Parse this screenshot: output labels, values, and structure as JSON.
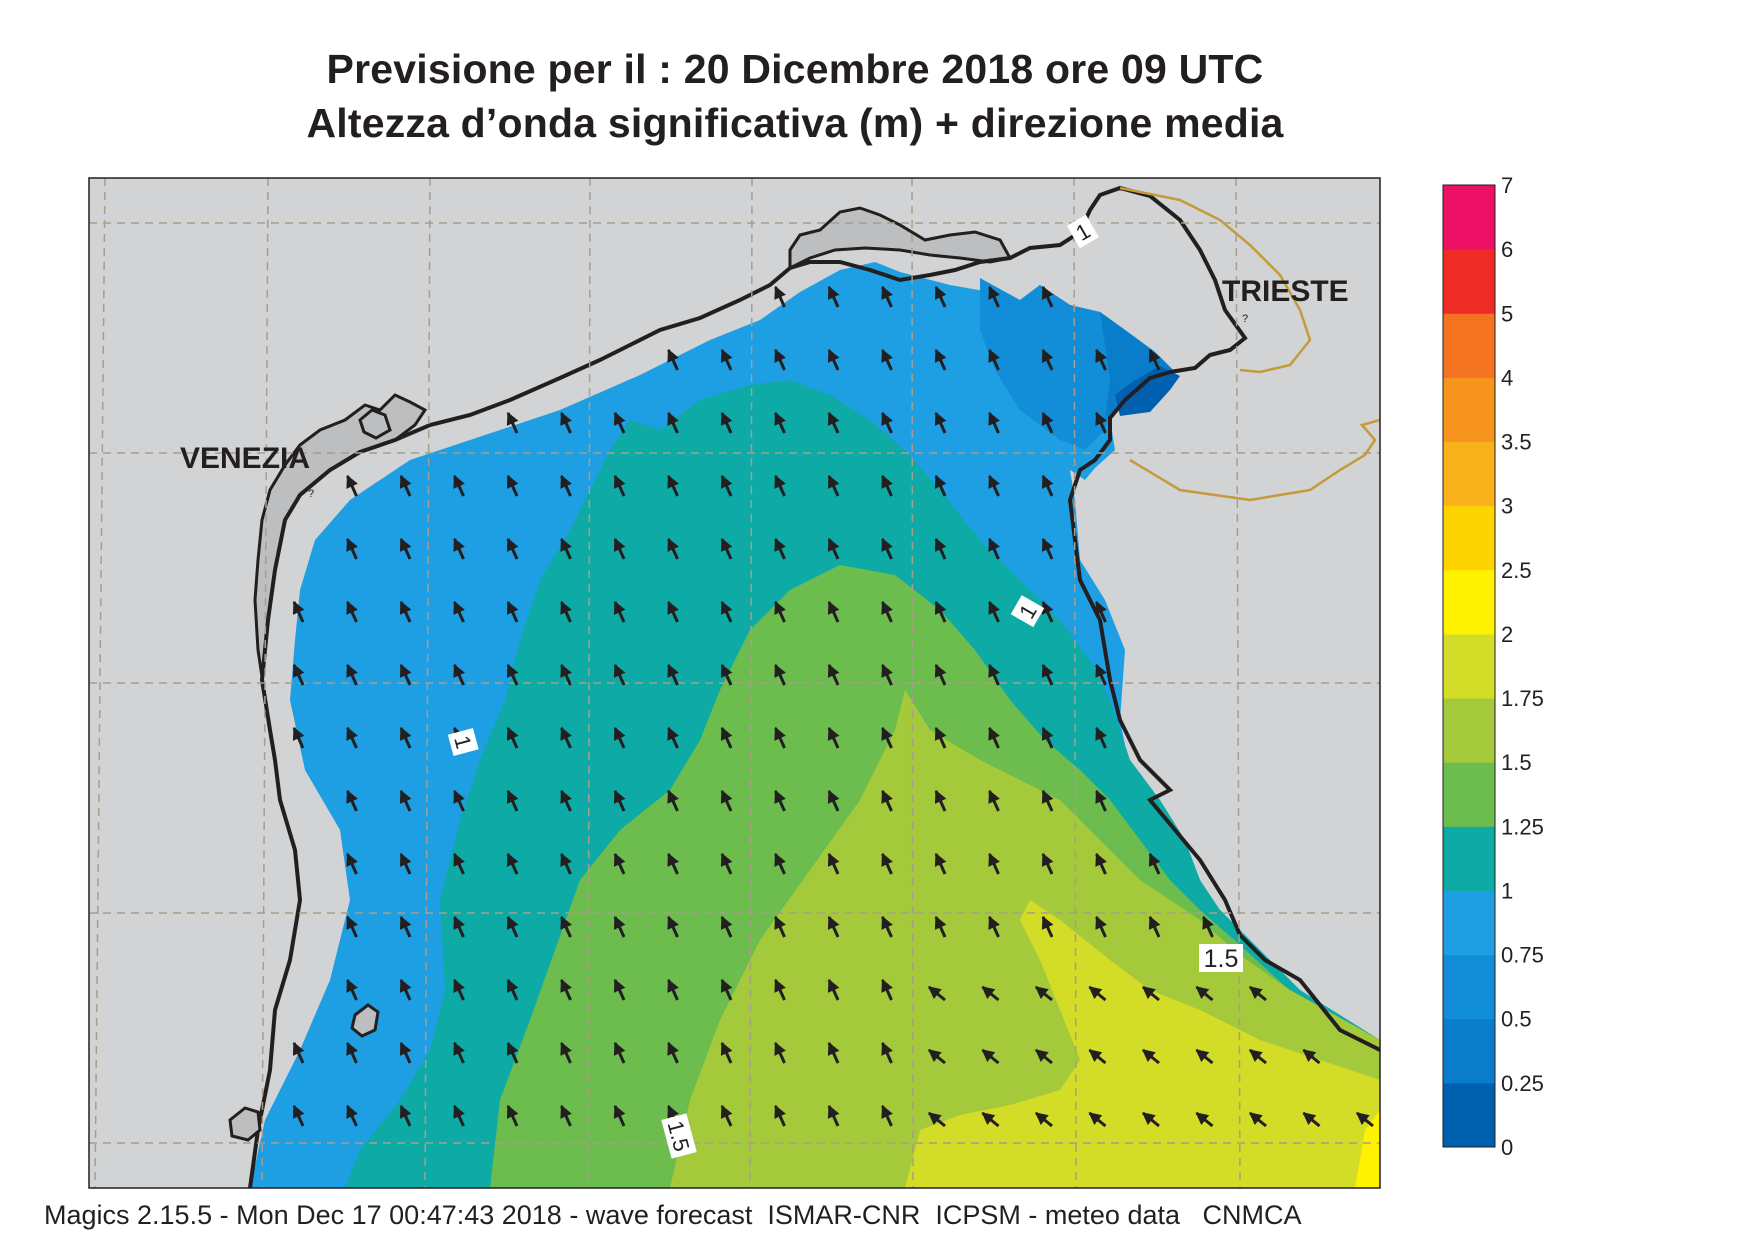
{
  "title": {
    "line1": "Previsione per il  :  20 Dicembre  2018   ore 09 UTC",
    "line2": "Altezza d’onda significativa (m) + direzione media"
  },
  "places": {
    "venezia": "VENEZIA",
    "trieste": "TRIESTE",
    "small_marker": "?"
  },
  "contour_labels": [
    "1",
    "1",
    "1",
    "1.5",
    "1.5"
  ],
  "legend": {
    "levels": [
      "0",
      "0.25",
      "0.5",
      "0.75",
      "1",
      "1.25",
      "1.5",
      "1.75",
      "2",
      "2.5",
      "3",
      "3.5",
      "4",
      "5",
      "6",
      "7"
    ],
    "colors": [
      "#0060b0",
      "#0a7dca",
      "#128ed9",
      "#1e9ee3",
      "#0eaaa6",
      "#6cbd4e",
      "#a4c93a",
      "#d3dc27",
      "#fff200",
      "#fdd400",
      "#f9b21c",
      "#f7941d",
      "#f47320",
      "#ee2b24",
      "#ec1066"
    ]
  },
  "wave_direction": "NNW",
  "footer": "Magics 2.15.5 - Mon Dec 17 00:47:43 2018 - wave forecast  ISMAR-CNR  ICPSM - meteo data   CNMCA"
}
